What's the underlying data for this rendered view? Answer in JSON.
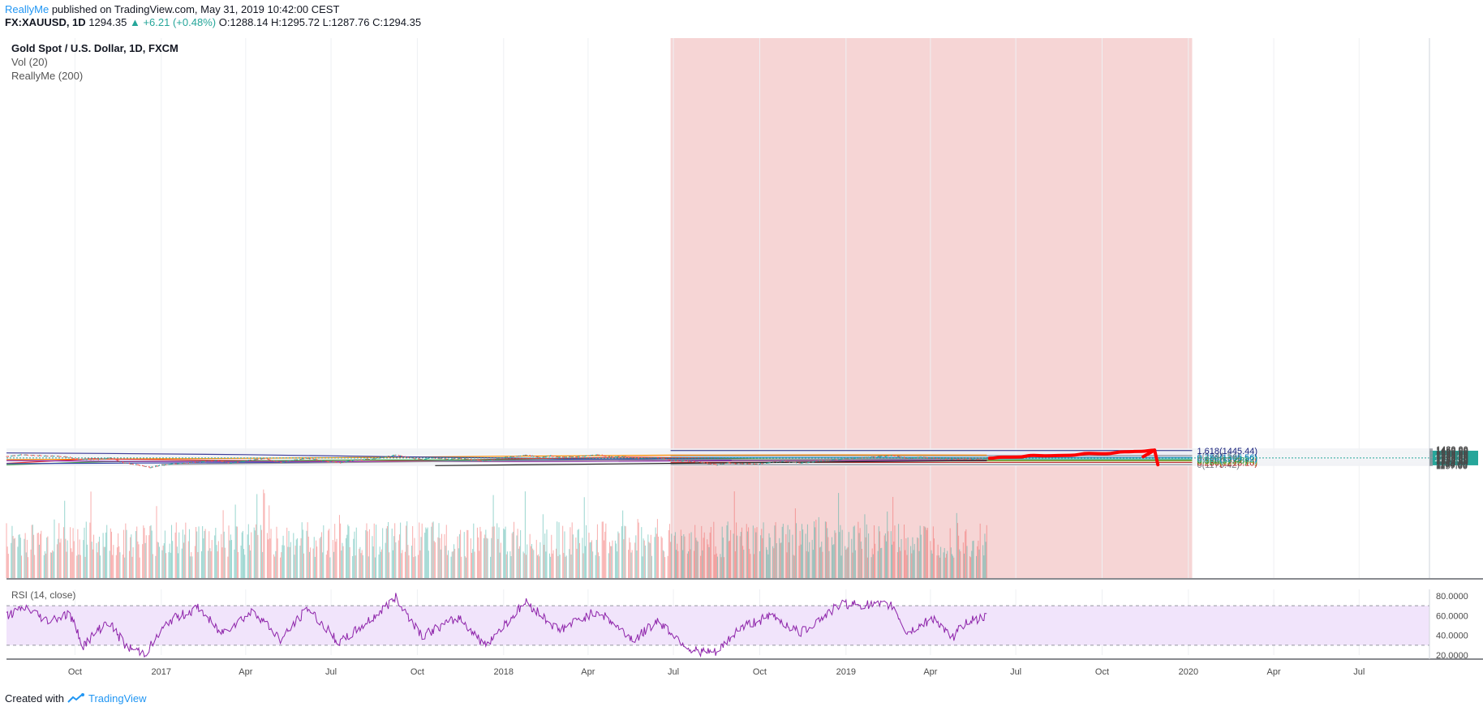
{
  "header": {
    "author": "ReallyMe",
    "published_text": "published on TradingView.com, May 31, 2019 10:42:00 CEST",
    "symbol": "FX:XAUUSD, 1D",
    "last": "1294.35",
    "change": "+6.21",
    "change_pct": "(+0.48%)",
    "ohlc": "O:1288.14 H:1295.72 L:1287.76 C:1294.35"
  },
  "legend": {
    "title": "Gold Spot / U.S. Dollar, 1D, FXCM",
    "vol": "Vol (20)",
    "indicator": "ReallyMe (200)"
  },
  "rsi_label": "RSI (14, close)",
  "footer": {
    "created_with": "Created with",
    "brand": "TradingView"
  },
  "colors": {
    "candle_up": "#26a69a",
    "candle_down": "#ef5350",
    "ma_red": "#e53935",
    "ma_green": "#43a047",
    "ma_blue": "#3949ab",
    "ma_navy": "#3f3d99",
    "ma_purple": "#8e24aa",
    "ma_orange": "#fb8c00",
    "rsi_line": "#8e24aa",
    "arrow": "#ff0000",
    "last_price_bg": "#26a69a"
  },
  "chart_data": {
    "type": "candlestick",
    "price_axis_ticks": [
      1157,
      1170,
      1184,
      1198,
      1213,
      1229,
      1245,
      1260,
      1280,
      1300,
      1320,
      1340,
      1360,
      1380,
      1400,
      1420,
      1440,
      1460,
      1480
    ],
    "price_axis_labels": [
      "1157.00",
      "1170.00",
      "1184.00",
      "1198.00",
      "1213.00",
      "1229.00",
      "1245.00",
      "1260.00",
      "1280.00",
      "1300.00",
      "1320.00",
      "1340.00",
      "1360.00",
      "1380.00",
      "1400.00",
      "1420.00",
      "1440.00",
      "1460.00",
      "1480.00"
    ],
    "last_price": 1294.35,
    "last_price_label": "1294.35",
    "time_axis": [
      {
        "label": "Oct",
        "date": "2016-10-01"
      },
      {
        "label": "2017",
        "date": "2017-01-01"
      },
      {
        "label": "Apr",
        "date": "2017-04-01"
      },
      {
        "label": "Jul",
        "date": "2017-07-01"
      },
      {
        "label": "Oct",
        "date": "2017-10-01"
      },
      {
        "label": "2018",
        "date": "2018-01-01"
      },
      {
        "label": "Apr",
        "date": "2018-04-01"
      },
      {
        "label": "Jul",
        "date": "2018-07-01"
      },
      {
        "label": "Oct",
        "date": "2018-10-01"
      },
      {
        "label": "2019",
        "date": "2019-01-01"
      },
      {
        "label": "Apr",
        "date": "2019-04-01"
      },
      {
        "label": "Jul",
        "date": "2019-07-01"
      },
      {
        "label": "Oct",
        "date": "2019-10-01"
      },
      {
        "label": "2020",
        "date": "2020-01-01"
      },
      {
        "label": "Apr",
        "date": "2020-04-01"
      },
      {
        "label": "Jul",
        "date": "2020-07-01"
      }
    ],
    "price_path": [
      [
        "2016-07-20",
        1330
      ],
      [
        "2016-08-05",
        1360
      ],
      [
        "2016-08-20",
        1345
      ],
      [
        "2016-09-05",
        1335
      ],
      [
        "2016-09-20",
        1325
      ],
      [
        "2016-10-05",
        1270
      ],
      [
        "2016-10-25",
        1270
      ],
      [
        "2016-11-08",
        1300
      ],
      [
        "2016-11-20",
        1210
      ],
      [
        "2016-12-05",
        1175
      ],
      [
        "2016-12-20",
        1130
      ],
      [
        "2017-01-10",
        1190
      ],
      [
        "2017-01-25",
        1200
      ],
      [
        "2017-02-15",
        1235
      ],
      [
        "2017-03-01",
        1250
      ],
      [
        "2017-03-15",
        1200
      ],
      [
        "2017-04-05",
        1255
      ],
      [
        "2017-04-20",
        1285
      ],
      [
        "2017-05-09",
        1215
      ],
      [
        "2017-05-25",
        1265
      ],
      [
        "2017-06-06",
        1295
      ],
      [
        "2017-06-20",
        1245
      ],
      [
        "2017-07-10",
        1210
      ],
      [
        "2017-07-25",
        1258
      ],
      [
        "2017-08-15",
        1280
      ],
      [
        "2017-09-08",
        1355
      ],
      [
        "2017-09-20",
        1310
      ],
      [
        "2017-10-06",
        1265
      ],
      [
        "2017-10-16",
        1305
      ],
      [
        "2017-11-01",
        1275
      ],
      [
        "2017-11-15",
        1290
      ],
      [
        "2017-12-12",
        1240
      ],
      [
        "2017-12-28",
        1300
      ],
      [
        "2018-01-10",
        1320
      ],
      [
        "2018-01-25",
        1355
      ],
      [
        "2018-02-08",
        1310
      ],
      [
        "2018-02-20",
        1340
      ],
      [
        "2018-03-01",
        1315
      ],
      [
        "2018-03-20",
        1325
      ],
      [
        "2018-04-11",
        1360
      ],
      [
        "2018-04-25",
        1320
      ],
      [
        "2018-05-10",
        1320
      ],
      [
        "2018-05-22",
        1290
      ],
      [
        "2018-06-05",
        1298
      ],
      [
        "2018-06-14",
        1305
      ],
      [
        "2018-06-28",
        1250
      ],
      [
        "2018-07-12",
        1240
      ],
      [
        "2018-07-25",
        1225
      ],
      [
        "2018-08-16",
        1175
      ],
      [
        "2018-08-28",
        1205
      ],
      [
        "2018-09-10",
        1195
      ],
      [
        "2018-09-28",
        1185
      ],
      [
        "2018-10-15",
        1225
      ],
      [
        "2018-10-26",
        1235
      ],
      [
        "2018-11-13",
        1200
      ],
      [
        "2018-11-25",
        1225
      ],
      [
        "2018-12-10",
        1245
      ],
      [
        "2018-12-27",
        1280
      ],
      [
        "2019-01-10",
        1290
      ],
      [
        "2019-01-31",
        1320
      ],
      [
        "2019-02-20",
        1345
      ],
      [
        "2019-03-07",
        1285
      ],
      [
        "2019-03-20",
        1315
      ],
      [
        "2019-04-05",
        1295
      ],
      [
        "2019-04-23",
        1270
      ],
      [
        "2019-05-05",
        1280
      ],
      [
        "2019-05-20",
        1275
      ],
      [
        "2019-05-31",
        1294
      ]
    ],
    "moving_averages": [
      {
        "color": "#fb8c00",
        "points": [
          [
            "2016-07-20",
            1262
          ],
          [
            "2017-01-01",
            1280
          ],
          [
            "2017-07-01",
            1300
          ],
          [
            "2018-01-01",
            1328
          ],
          [
            "2018-07-01",
            1350
          ],
          [
            "2019-01-01",
            1355
          ],
          [
            "2019-05-31",
            1353
          ]
        ]
      },
      {
        "color": "#3f3d99",
        "points": [
          [
            "2016-07-20",
            1395
          ],
          [
            "2016-11-01",
            1385
          ],
          [
            "2017-04-01",
            1360
          ],
          [
            "2017-09-01",
            1320
          ],
          [
            "2018-02-01",
            1290
          ],
          [
            "2018-08-01",
            1258
          ],
          [
            "2019-01-01",
            1248
          ],
          [
            "2019-05-31",
            1244
          ]
        ]
      },
      {
        "color": "#e53935",
        "points": [
          [
            "2016-07-20",
            1195
          ],
          [
            "2016-10-20",
            1280
          ],
          [
            "2017-01-10",
            1260
          ],
          [
            "2017-04-20",
            1245
          ],
          [
            "2017-07-15",
            1225
          ],
          [
            "2017-10-20",
            1250
          ],
          [
            "2018-01-15",
            1280
          ],
          [
            "2018-05-15",
            1310
          ],
          [
            "2018-07-20",
            1300
          ],
          [
            "2018-10-15",
            1270
          ],
          [
            "2019-01-05",
            1245
          ],
          [
            "2019-05-31",
            1260
          ]
        ]
      },
      {
        "color": "#43a047",
        "points": [
          [
            "2016-07-20",
            1170
          ],
          [
            "2016-11-01",
            1225
          ],
          [
            "2017-03-01",
            1235
          ],
          [
            "2017-08-01",
            1257
          ],
          [
            "2017-11-15",
            1257
          ],
          [
            "2018-03-01",
            1265
          ],
          [
            "2018-06-15",
            1288
          ],
          [
            "2018-09-10",
            1280
          ],
          [
            "2018-12-20",
            1270
          ],
          [
            "2019-03-01",
            1275
          ],
          [
            "2019-05-31",
            1276
          ]
        ]
      },
      {
        "color": "#3949ab",
        "points": [
          [
            "2016-07-20",
            1190
          ],
          [
            "2016-12-01",
            1200
          ],
          [
            "2017-06-01",
            1210
          ],
          [
            "2017-12-01",
            1240
          ],
          [
            "2018-03-15",
            1268
          ],
          [
            "2018-06-15",
            1282
          ],
          [
            "2018-09-01",
            1270
          ],
          [
            "2018-12-01",
            1263
          ],
          [
            "2019-03-01",
            1270
          ],
          [
            "2019-05-31",
            1277
          ]
        ]
      },
      {
        "color": "#8e24aa",
        "points": [
          [
            "2016-07-20",
            1248
          ],
          [
            "2016-12-01",
            1230
          ],
          [
            "2017-05-01",
            1228
          ],
          [
            "2017-10-01",
            1226
          ],
          [
            "2018-03-01",
            1230
          ],
          [
            "2018-07-01",
            1240
          ],
          [
            "2018-12-01",
            1244
          ],
          [
            "2019-05-31",
            1246
          ]
        ]
      },
      {
        "color": "#9e9e9e",
        "points": [
          [
            "2017-01-01",
            1175
          ],
          [
            "2018-01-01",
            1240
          ],
          [
            "2019-05-31",
            1298
          ]
        ]
      },
      {
        "color": "#9e9e9e",
        "points": [
          [
            "2018-09-01",
            1255
          ],
          [
            "2019-05-31",
            1268
          ]
        ]
      },
      {
        "color": "#212121",
        "points": [
          [
            "2017-10-20",
            1157
          ],
          [
            "2019-05-31",
            1248
          ]
        ]
      }
    ],
    "fibonacci": {
      "start_date": "2018-06-28",
      "end_date": "2020-01-05",
      "levels": [
        {
          "ratio": "0",
          "value": 1173.42,
          "label": "0(1173.42)",
          "color": "#787b86",
          "fill": "#f6d5d5"
        },
        {
          "ratio": "0.236",
          "value": 1213.1,
          "label": "0.236(1213.10)",
          "color": "#b71c1c",
          "fill": "#edf5d0"
        },
        {
          "ratio": "0.382",
          "value": 1237.64,
          "label": "0.382(1237.64)",
          "color": "#9e9d24",
          "fill": "#d4f0d0"
        },
        {
          "ratio": "0.5",
          "value": 1257.48,
          "label": "0.5(1257.48)",
          "color": "#2e9a3a",
          "fill": "#d0f0e2"
        },
        {
          "ratio": "0.618",
          "value": 1277.32,
          "label": "0.618(1277.32)",
          "color": "#26a69a",
          "fill": "#d2ecf4"
        },
        {
          "ratio": "0.786",
          "value": 1305.56,
          "label": "0.786(1305.56)",
          "color": "#0277bd",
          "fill": "#e3e3e3"
        },
        {
          "ratio": "1",
          "value": 1341.54,
          "label": "1(1341.54)",
          "color": "#787b86",
          "fill": "#d7d7f2"
        },
        {
          "ratio": "1.618",
          "value": 1445.44,
          "label": "1.618(1445.44)",
          "color": "#1a237e",
          "fill": "#f6d5d5"
        }
      ],
      "top_value": 1480
    },
    "projection_path": [
      [
        "2019-06-03",
        1290
      ],
      [
        "2019-06-18",
        1310
      ],
      [
        "2019-07-03",
        1312
      ],
      [
        "2019-07-20",
        1345
      ],
      [
        "2019-08-01",
        1338
      ],
      [
        "2019-08-28",
        1348
      ],
      [
        "2019-09-17",
        1385
      ],
      [
        "2019-10-05",
        1380
      ],
      [
        "2019-10-25",
        1420
      ],
      [
        "2019-11-12",
        1430
      ],
      [
        "2019-11-26",
        1455
      ]
    ],
    "rsi": {
      "axis_labels": [
        "20.0000",
        "40.0000",
        "60.0000",
        "80.0000"
      ],
      "axis_values": [
        20,
        40,
        60,
        80
      ],
      "upper": 70,
      "lower": 30,
      "path": [
        [
          "2016-07-20",
          60
        ],
        [
          "2016-08-10",
          68
        ],
        [
          "2016-09-01",
          55
        ],
        [
          "2016-09-25",
          62
        ],
        [
          "2016-10-10",
          30
        ],
        [
          "2016-11-05",
          55
        ],
        [
          "2016-11-25",
          28
        ],
        [
          "2016-12-15",
          22
        ],
        [
          "2017-01-10",
          55
        ],
        [
          "2017-02-10",
          68
        ],
        [
          "2017-03-05",
          42
        ],
        [
          "2017-04-10",
          65
        ],
        [
          "2017-05-09",
          35
        ],
        [
          "2017-06-06",
          68
        ],
        [
          "2017-07-10",
          32
        ],
        [
          "2017-08-15",
          58
        ],
        [
          "2017-09-08",
          78
        ],
        [
          "2017-10-06",
          40
        ],
        [
          "2017-11-15",
          58
        ],
        [
          "2017-12-12",
          30
        ],
        [
          "2018-01-25",
          74
        ],
        [
          "2018-03-01",
          45
        ],
        [
          "2018-04-11",
          65
        ],
        [
          "2018-05-20",
          35
        ],
        [
          "2018-06-14",
          55
        ],
        [
          "2018-07-20",
          25
        ],
        [
          "2018-08-16",
          22
        ],
        [
          "2018-09-10",
          48
        ],
        [
          "2018-10-15",
          60
        ],
        [
          "2018-11-13",
          42
        ],
        [
          "2018-12-27",
          72
        ],
        [
          "2019-02-20",
          70
        ],
        [
          "2019-03-07",
          42
        ],
        [
          "2019-04-05",
          58
        ],
        [
          "2019-04-23",
          36
        ],
        [
          "2019-05-10",
          55
        ],
        [
          "2019-05-31",
          58
        ]
      ]
    }
  }
}
